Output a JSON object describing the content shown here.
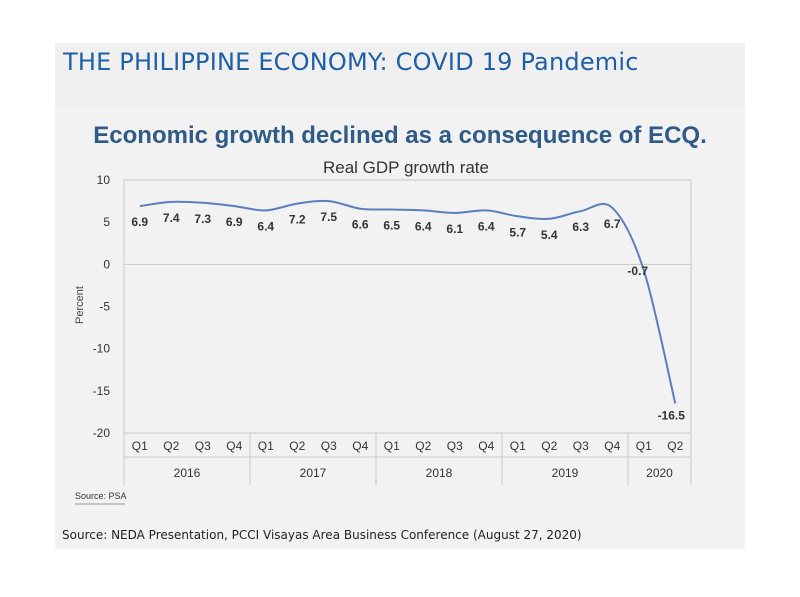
{
  "slide": {
    "title": "THE PHILIPPINE ECONOMY: COVID 19 Pandemic",
    "footer": "Source: NEDA Presentation, PCCI Visayas Area Business Conference (August 27, 2020)"
  },
  "chart_headline": "Economic growth declined as a consequence of ECQ.",
  "colors": {
    "title": "#1f5fa8",
    "headline": "#2f5b86",
    "line": "#5b7fbd",
    "band": "#f0f0f0"
  },
  "chart_data": {
    "type": "line",
    "title": "Real GDP growth rate",
    "ylabel": "Percent",
    "xlabel": "",
    "source": "Source: PSA",
    "ylim": [
      -20,
      10
    ],
    "yticks": [
      10,
      5,
      0,
      -5,
      -10,
      -15,
      -20
    ],
    "grid": false,
    "years": [
      {
        "label": "2016",
        "quarters": [
          "Q1",
          "Q2",
          "Q3",
          "Q4"
        ]
      },
      {
        "label": "2017",
        "quarters": [
          "Q1",
          "Q2",
          "Q3",
          "Q4"
        ]
      },
      {
        "label": "2018",
        "quarters": [
          "Q1",
          "Q2",
          "Q3",
          "Q4"
        ]
      },
      {
        "label": "2019",
        "quarters": [
          "Q1",
          "Q2",
          "Q3",
          "Q4"
        ]
      },
      {
        "label": "2020",
        "quarters": [
          "Q1",
          "Q2"
        ]
      }
    ],
    "values": [
      6.9,
      7.4,
      7.3,
      6.9,
      6.4,
      7.2,
      7.5,
      6.6,
      6.5,
      6.4,
      6.1,
      6.4,
      5.7,
      5.4,
      6.3,
      6.7,
      -0.7,
      -16.5
    ],
    "data_labels": [
      "6.9",
      "7.4",
      "7.3",
      "6.9",
      "6.4",
      "7.2",
      "7.5",
      "6.6",
      "6.5",
      "6.4",
      "6.1",
      "6.4",
      "5.7",
      "5.4",
      "6.3",
      "6.7",
      "-0.7",
      "-16.5"
    ]
  }
}
